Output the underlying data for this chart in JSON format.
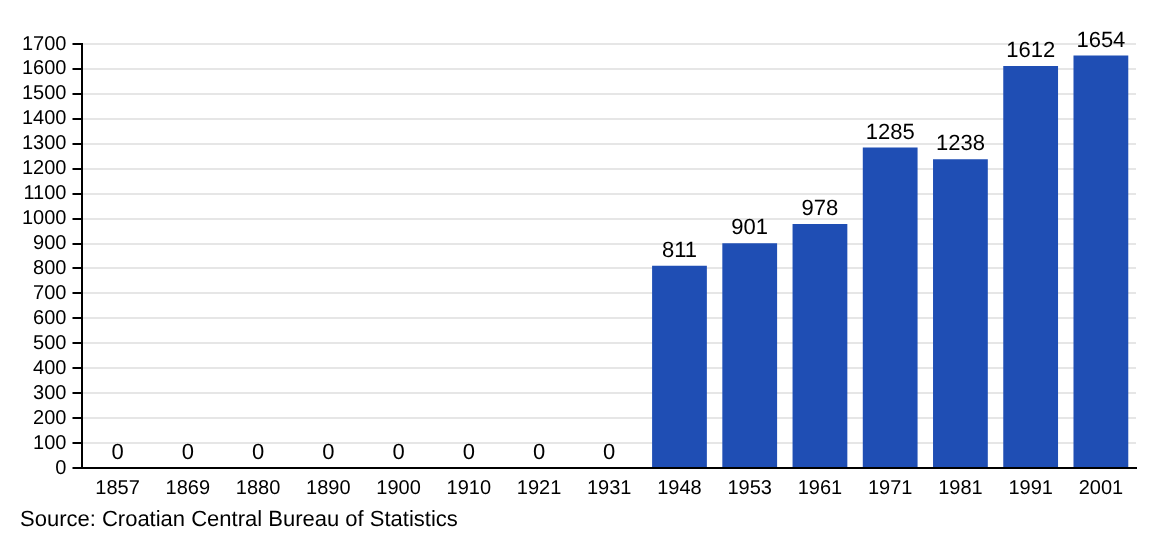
{
  "chart_data": {
    "type": "bar",
    "categories": [
      "1857",
      "1869",
      "1880",
      "1890",
      "1900",
      "1910",
      "1921",
      "1931",
      "1948",
      "1953",
      "1961",
      "1971",
      "1981",
      "1991",
      "2001"
    ],
    "values": [
      0,
      0,
      0,
      0,
      0,
      0,
      0,
      0,
      811,
      901,
      978,
      1285,
      1238,
      1612,
      1654
    ],
    "color": "#1f4eb4",
    "ylim": [
      0,
      1700
    ],
    "yticks": [
      0,
      100,
      200,
      300,
      400,
      500,
      600,
      700,
      800,
      900,
      1000,
      1100,
      1200,
      1300,
      1400,
      1500,
      1600,
      1700
    ],
    "grid": "y",
    "data_labels": true,
    "legend": false,
    "annotations": [
      "Source: Croatian Central Bureau of Statistics"
    ]
  }
}
